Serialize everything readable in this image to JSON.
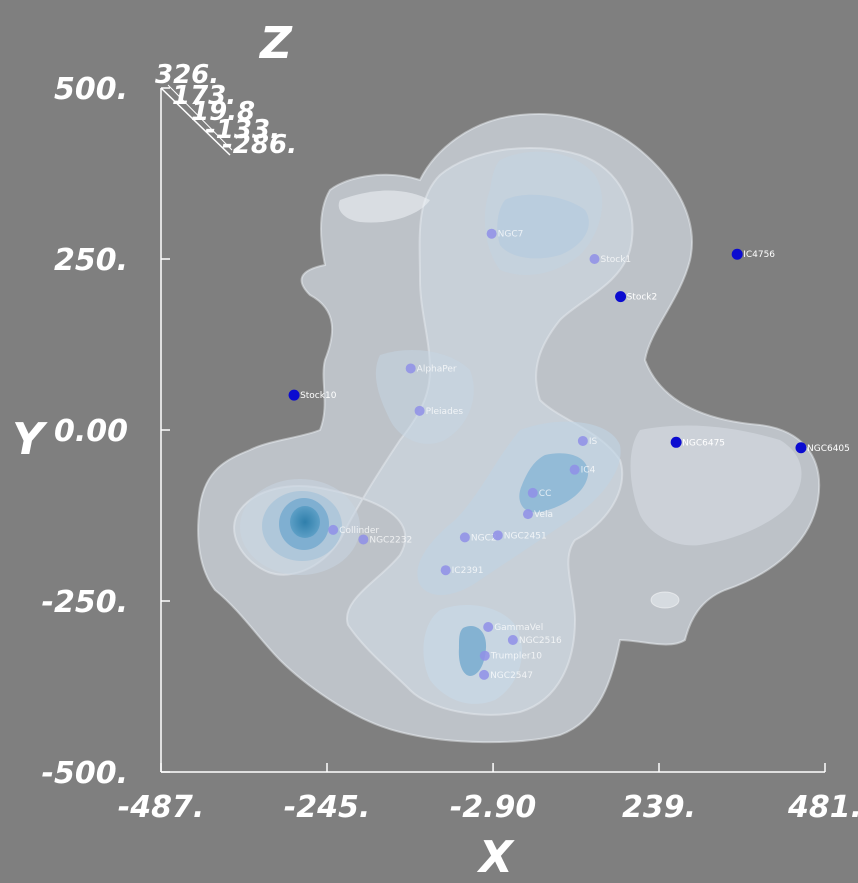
{
  "chart_data": {
    "type": "scatter",
    "title": "",
    "xlabel": "X",
    "ylabel": "Y",
    "zlabel": "Z",
    "xlim": [
      -487,
      481
    ],
    "ylim": [
      -500,
      500
    ],
    "x_tick_labels": [
      {
        "value": -487,
        "label": "-487."
      },
      {
        "value": -245,
        "label": "-245."
      },
      {
        "value": -2.9,
        "label": "-2.90"
      },
      {
        "value": 239,
        "label": "239."
      },
      {
        "value": 481,
        "label": "481."
      }
    ],
    "y_tick_labels": [
      {
        "value": 500,
        "label": "500."
      },
      {
        "value": 250,
        "label": "250."
      },
      {
        "value": 0,
        "label": "0.00"
      },
      {
        "value": -250,
        "label": "-250."
      },
      {
        "value": -500,
        "label": "-500."
      }
    ],
    "z_tick_labels": [
      "326.",
      "173.",
      "19.8",
      "-133.",
      "-286."
    ],
    "point_color_front": "#0b0bd0",
    "point_color_inside": "#8f8fe8",
    "surface_color": "#dde4ec",
    "surface_core_color": "#3f8db8",
    "points": [
      {
        "label": "Stock1",
        "x": 145,
        "y": 250,
        "inside": true
      },
      {
        "label": "IC4756",
        "x": 353,
        "y": 257,
        "inside": false
      },
      {
        "label": "Stock2",
        "x": 183,
        "y": 195,
        "inside": false
      },
      {
        "label": "NGC7",
        "x": -5,
        "y": 287,
        "inside": true
      },
      {
        "label": "AlphaPer",
        "x": -123,
        "y": 90,
        "inside": true
      },
      {
        "label": "Pleiades",
        "x": -110,
        "y": 28,
        "inside": true
      },
      {
        "label": "Stock10",
        "x": -293,
        "y": 51,
        "inside": false
      },
      {
        "label": "NGC6475",
        "x": 264,
        "y": -18,
        "inside": false
      },
      {
        "label": "NGC6405",
        "x": 446,
        "y": -26,
        "inside": false
      },
      {
        "label": "IS",
        "x": 128,
        "y": -16,
        "inside": true
      },
      {
        "label": "IC4",
        "x": 116,
        "y": -58,
        "inside": true
      },
      {
        "label": "CC",
        "x": 55,
        "y": -92,
        "inside": true
      },
      {
        "label": "Vela",
        "x": 48,
        "y": -123,
        "inside": true
      },
      {
        "label": "NGC2",
        "x": -44,
        "y": -157,
        "inside": true
      },
      {
        "label": "NGC2451",
        "x": 4,
        "y": -154,
        "inside": true
      },
      {
        "label": "IC2391",
        "x": -72,
        "y": -205,
        "inside": true
      },
      {
        "label": "NGC2232",
        "x": -192,
        "y": -160,
        "inside": true
      },
      {
        "label": "Collinder",
        "x": -236,
        "y": -146,
        "inside": true
      },
      {
        "label": "GammaVel",
        "x": -10,
        "y": -288,
        "inside": true
      },
      {
        "label": "NGC2516",
        "x": 26,
        "y": -307,
        "inside": true
      },
      {
        "label": "Trumpler10",
        "x": -15,
        "y": -330,
        "inside": true
      },
      {
        "label": "NGC2547",
        "x": -16,
        "y": -358,
        "inside": true
      }
    ]
  }
}
